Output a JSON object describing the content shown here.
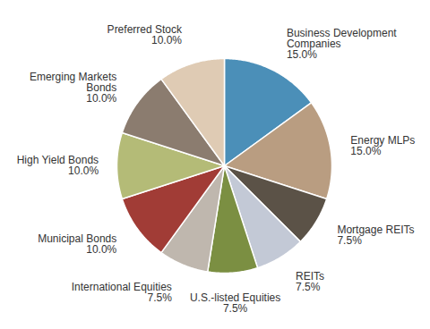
{
  "chart_data": {
    "type": "pie",
    "categories": [
      "Business Development Companies",
      "Energy MLPs",
      "Mortgage REITs",
      "REITs",
      "U.S.-listed Equities",
      "International Equities",
      "Municipal Bonds",
      "High Yield Bonds",
      "Emerging Markets Bonds",
      "Preferred Stock"
    ],
    "values": [
      15.0,
      15.0,
      7.5,
      7.5,
      7.5,
      7.5,
      10.0,
      10.0,
      10.0,
      10.0
    ],
    "value_labels": [
      "15.0%",
      "15.0%",
      "7.5%",
      "7.5%",
      "7.5%",
      "7.5%",
      "10.0%",
      "10.0%",
      "10.0%",
      "10.0%"
    ],
    "colors": [
      "#4b8fb8",
      "#b99d81",
      "#5b5247",
      "#c3c9d6",
      "#7b8f42",
      "#bfb7ae",
      "#a13c36",
      "#b4bb77",
      "#8b7c6f",
      "#dfcbb4"
    ],
    "data_labels": true
  }
}
